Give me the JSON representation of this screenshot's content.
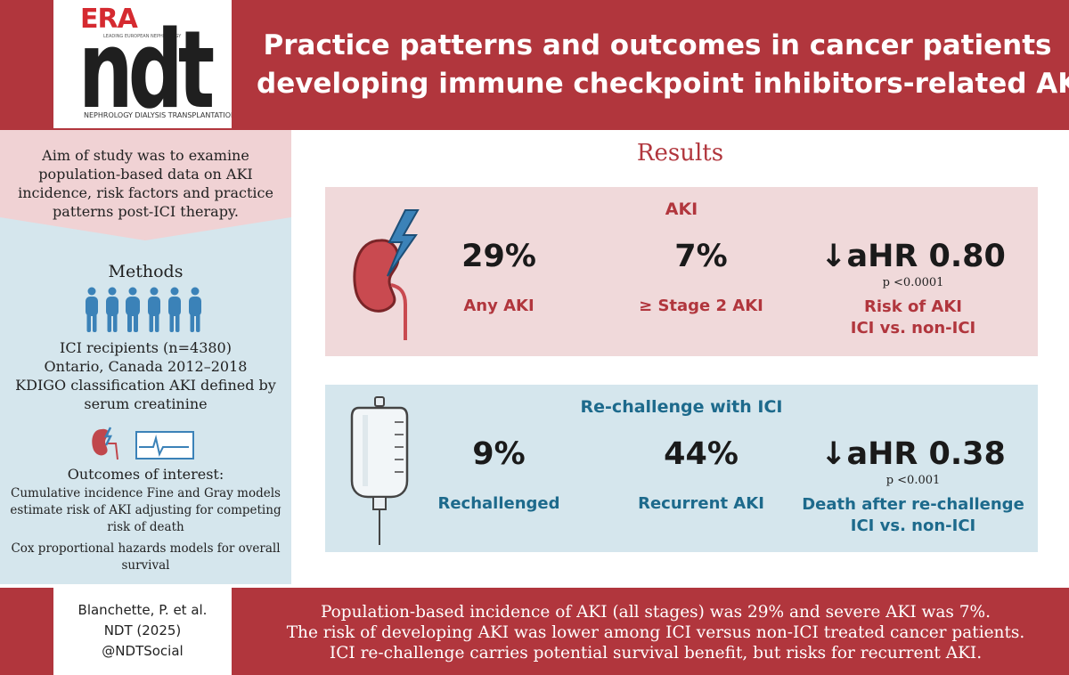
{
  "header": {
    "logo_era": "ERA",
    "logo_era_sub": "LEADING EUROPEAN NEPHROLOGY",
    "logo_ndt": "ndt",
    "logo_ndt_sub": "NEPHROLOGY DIALYSIS TRANSPLANTATION",
    "title_line1": "Practice patterns and outcomes in cancer patients",
    "title_line2": "developing immune checkpoint inhibitors-related AKI"
  },
  "aim": {
    "text": "Aim of study was to examine population-based data on AKI incidence, risk factors and practice patterns post-ICI therapy."
  },
  "methods": {
    "title": "Methods",
    "line1": "ICI recipients (n=4380)",
    "line2": "Ontario, Canada 2012–2018",
    "line3": "KDIGO classification AKI defined by serum creatinine",
    "outcomes_title": "Outcomes of interest:",
    "outcomes_text1": "Cumulative incidence Fine and Gray models estimate risk of AKI adjusting for competing risk of death",
    "outcomes_text2": "Cox proportional hazards models for overall survival"
  },
  "results": {
    "title": "Results",
    "aki": {
      "heading": "AKI",
      "stat1_value": "29%",
      "stat1_label": "Any AKI",
      "stat2_value": "7%",
      "stat2_label": "≥ Stage 2 AKI",
      "stat3_value": "↓aHR 0.80",
      "stat3_p": "p <0.0001",
      "stat3_label1": "Risk of AKI",
      "stat3_label2": "ICI vs. non-ICI"
    },
    "rechallenge": {
      "heading": "Re-challenge with ICI",
      "stat1_value": "9%",
      "stat1_label": "Rechallenged",
      "stat2_value": "44%",
      "stat2_label": "Recurrent AKI",
      "stat3_value": "↓aHR 0.38",
      "stat3_p": "p <0.001",
      "stat3_label1": "Death after re-challenge",
      "stat3_label2": "ICI vs. non-ICI"
    }
  },
  "footer": {
    "cite_line1": "Blanchette, P. et al.",
    "cite_line2": "NDT (2025)",
    "cite_line3": "@NDTSocial",
    "summary_line1": "Population-based incidence of AKI (all stages) was 29% and severe AKI was 7%.",
    "summary_line2": "The risk of developing AKI was lower among ICI versus non-ICI treated cancer patients.",
    "summary_line3": "ICI re-challenge carries potential survival benefit, but risks for recurrent AKI."
  },
  "colors": {
    "brand_red": "#b1363d",
    "brand_blue": "#1d6a8c",
    "panel_pink": "#f0d9da",
    "panel_blue": "#d5e6ed"
  }
}
